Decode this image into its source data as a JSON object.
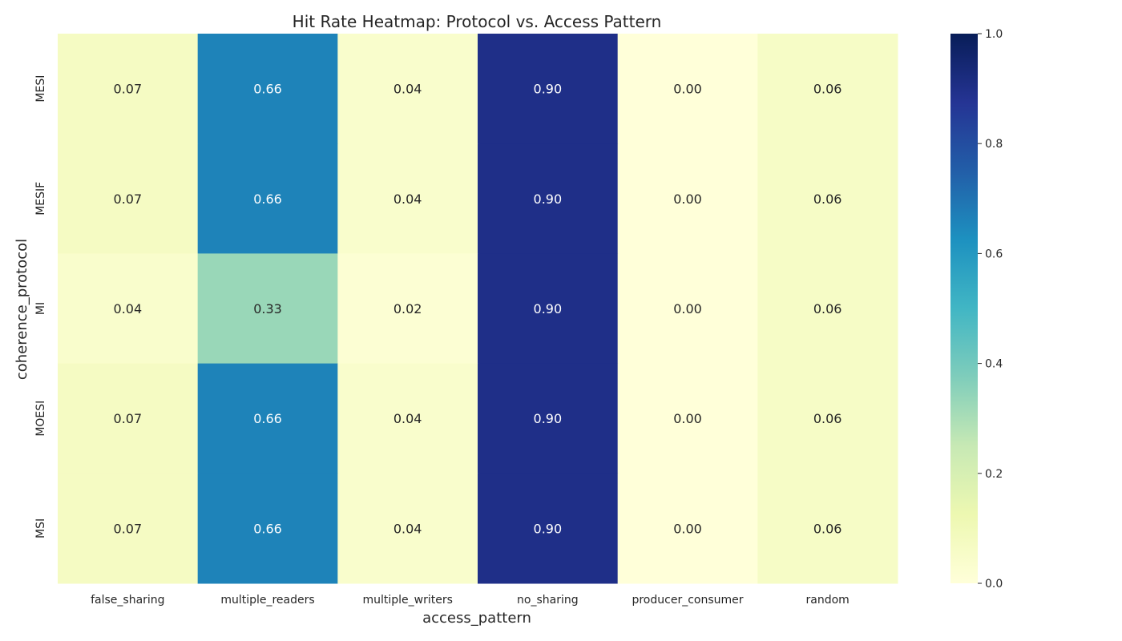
{
  "chart_data": {
    "type": "heatmap",
    "title": "Hit Rate Heatmap: Protocol vs. Access Pattern",
    "xlabel": "access_pattern",
    "ylabel": "coherence_protocol",
    "x_categories": [
      "false_sharing",
      "multiple_readers",
      "multiple_writers",
      "no_sharing",
      "producer_consumer",
      "random"
    ],
    "y_categories": [
      "MESI",
      "MESIF",
      "MI",
      "MOESI",
      "MSI"
    ],
    "values": [
      [
        0.07,
        0.66,
        0.04,
        0.9,
        0.0,
        0.06
      ],
      [
        0.07,
        0.66,
        0.04,
        0.9,
        0.0,
        0.06
      ],
      [
        0.04,
        0.33,
        0.02,
        0.9,
        0.0,
        0.06
      ],
      [
        0.07,
        0.66,
        0.04,
        0.9,
        0.0,
        0.06
      ],
      [
        0.07,
        0.66,
        0.04,
        0.9,
        0.0,
        0.06
      ]
    ],
    "value_format": "0.00",
    "colormap": "YlGnBu",
    "colorbar": {
      "range": [
        0.0,
        1.0
      ],
      "ticks": [
        "0.0",
        "0.2",
        "0.4",
        "0.6",
        "0.8",
        "1.0"
      ]
    },
    "grid": false,
    "legend": "colorbar-right"
  }
}
